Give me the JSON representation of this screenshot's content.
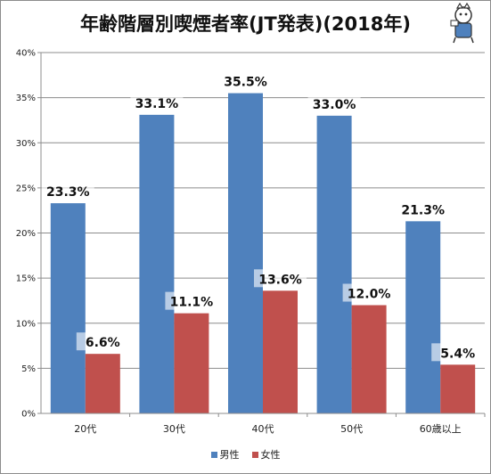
{
  "chart_data": {
    "type": "bar",
    "title": "年齢階層別喫煙者率(JT発表)(2018年)",
    "categories": [
      "20代",
      "30代",
      "40代",
      "50代",
      "60歳以上"
    ],
    "series": [
      {
        "name": "男性",
        "values": [
          23.3,
          33.1,
          35.5,
          33.0,
          21.3
        ],
        "color": "#4f81bd"
      },
      {
        "name": "女性",
        "values": [
          6.6,
          11.1,
          13.6,
          12.0,
          5.4
        ],
        "color": "#c0504d"
      }
    ],
    "value_labels": [
      [
        "23.3%",
        "33.1%",
        "35.5%",
        "33.0%",
        "21.3%"
      ],
      [
        "6.6%",
        "11.1%",
        "13.6%",
        "12.0%",
        "5.4%"
      ]
    ],
    "y_ticks": [
      "0%",
      "5%",
      "10%",
      "15%",
      "20%",
      "25%",
      "30%",
      "35%",
      "40%"
    ],
    "ylim": [
      0,
      40
    ],
    "y_unit": "%",
    "grid": true,
    "legend_position": "bottom"
  }
}
